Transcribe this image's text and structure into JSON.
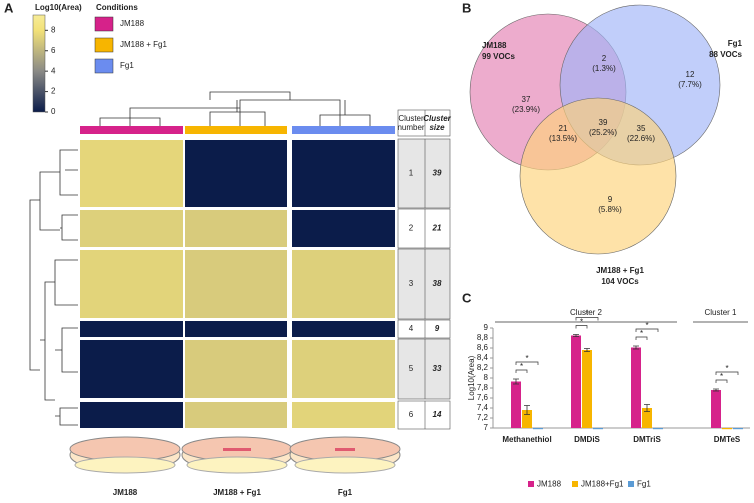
{
  "chart_data": [
    {
      "type": "heatmap",
      "panel": "A",
      "colorbar_label": "Log10(Area)",
      "zlim": [
        0,
        9.5
      ],
      "zticks": [
        0,
        2,
        4,
        6,
        8
      ],
      "colorscale": [
        [
          0,
          "#0b1c4a"
        ],
        [
          4,
          "#8a8a86"
        ],
        [
          8,
          "#f2e178"
        ],
        [
          9.5,
          "#f7ec98"
        ]
      ],
      "legend_title": "Conditions",
      "conditions": [
        {
          "name": "JM188",
          "color": "#d6228a"
        },
        {
          "name": "JM188 + Fg1",
          "color": "#f7b500"
        },
        {
          "name": "Fg1",
          "color": "#6b8cef"
        }
      ],
      "cluster_header": [
        "Cluster number",
        "Cluster size"
      ],
      "clusters": [
        1,
        2,
        3,
        4,
        5,
        6
      ],
      "cluster_sizes": [
        39,
        21,
        38,
        9,
        33,
        14
      ],
      "values": [
        [
          7.5,
          0,
          0
        ],
        [
          7.2,
          7.0,
          0
        ],
        [
          7.4,
          7.0,
          7.2
        ],
        [
          0,
          0,
          0
        ],
        [
          0,
          7.0,
          7.2
        ],
        [
          0,
          7.0,
          7.4
        ]
      ],
      "dish_labels": [
        "JM188",
        "JM188 + Fg1",
        "Fg1"
      ]
    },
    {
      "type": "venn",
      "panel": "B",
      "sets": [
        {
          "name": "JM188",
          "total_label": "99 VOCs",
          "color": "#e47fb2",
          "label_color": "#e8262a"
        },
        {
          "name": "Fg1",
          "total_label": "88 VOCs",
          "color": "#9fb4f7",
          "label_color": "#3856b0"
        },
        {
          "name": "JM188 + Fg1",
          "total_label": "104 VOCs",
          "color": "#fdd27a",
          "label_color": "#f1a51a"
        }
      ],
      "regions": [
        {
          "value": 37,
          "percent_label": "(23.9%)"
        },
        {
          "value": 2,
          "percent_label": "(1.3%)"
        },
        {
          "value": 12,
          "percent_label": "(7.7%)"
        },
        {
          "value": 21,
          "percent_label": "(13.5%)"
        },
        {
          "value": 39,
          "percent_label": "(25.2%)"
        },
        {
          "value": 35,
          "percent_label": "(22.6%)"
        },
        {
          "value": 9,
          "percent_label": "(5.8%)"
        }
      ]
    },
    {
      "type": "bar",
      "panel": "C",
      "ylabel": "Log10(Area)",
      "categories": [
        "Methanethiol",
        "DMDiS",
        "DMTriS",
        "DMTeS"
      ],
      "groups": [
        {
          "label": "Cluster 2"
        },
        {
          "label": "Cluster 1"
        }
      ],
      "series": [
        {
          "name": "JM188",
          "color": "#d6228a",
          "values": [
            7.93,
            8.85,
            8.61,
            7.76
          ],
          "errors": [
            0.05,
            0.02,
            0.03,
            0.02
          ]
        },
        {
          "name": "JM188+Fg1",
          "color": "#f7b500",
          "values": [
            7.36,
            8.56,
            7.4,
            7.0
          ],
          "errors": [
            0.09,
            0.03,
            0.07,
            0
          ]
        },
        {
          "name": "Fg1",
          "color": "#5b9bd5",
          "values": [
            7.0,
            7.0,
            7.0,
            7.0
          ],
          "errors": [
            0,
            0,
            0,
            0
          ]
        }
      ],
      "significance_label": "*",
      "ylim": [
        7,
        9
      ],
      "yticks": [
        7,
        {
          "value": 7.2,
          "label": "7,2"
        },
        {
          "value": 7.4,
          "label": "7,4"
        },
        {
          "value": 7.6,
          "label": "7,6"
        },
        {
          "value": 7.8,
          "label": "7,8"
        },
        8,
        {
          "value": 8.2,
          "label": "8,2"
        },
        {
          "value": 8.4,
          "label": "8,4"
        },
        {
          "value": 8.6,
          "label": "8,6"
        },
        {
          "value": 8.8,
          "label": "8,8"
        },
        9
      ]
    }
  ]
}
